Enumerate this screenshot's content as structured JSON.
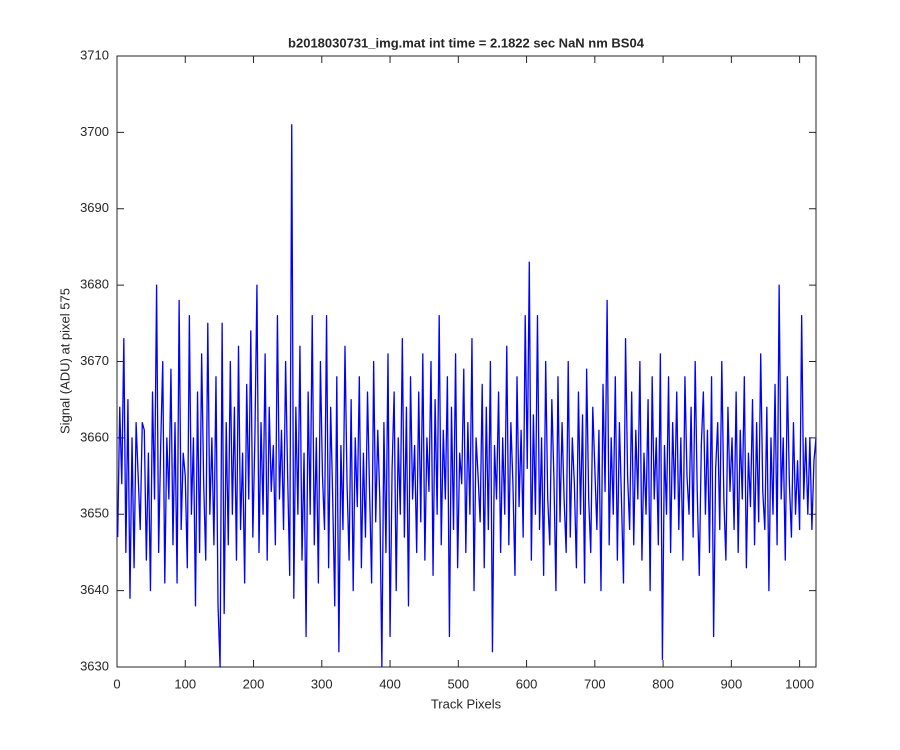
{
  "chart_data": {
    "type": "line",
    "title": "b2018030731_img.mat int time = 2.1822 sec  NaN nm BS04",
    "xlabel": "Track Pixels",
    "ylabel": "Signal (ADU) at pixel 575",
    "xlim": [
      0,
      1024
    ],
    "ylim": [
      3630,
      3710
    ],
    "xticks": [
      0,
      100,
      200,
      300,
      400,
      500,
      600,
      700,
      800,
      900,
      1000
    ],
    "yticks": [
      3630,
      3640,
      3650,
      3660,
      3670,
      3680,
      3690,
      3700,
      3710
    ],
    "grid": false,
    "x": [
      1,
      4,
      7,
      10,
      13,
      16,
      19,
      22,
      25,
      28,
      31,
      34,
      37,
      40,
      43,
      46,
      49,
      52,
      55,
      58,
      61,
      64,
      67,
      70,
      73,
      76,
      79,
      82,
      85,
      88,
      91,
      94,
      97,
      100,
      103,
      106,
      109,
      112,
      115,
      118,
      121,
      124,
      127,
      130,
      133,
      136,
      139,
      142,
      145,
      148,
      151,
      154,
      157,
      160,
      163,
      166,
      169,
      172,
      175,
      178,
      181,
      184,
      187,
      190,
      193,
      196,
      199,
      202,
      205,
      208,
      211,
      214,
      217,
      220,
      223,
      226,
      229,
      232,
      235,
      238,
      241,
      244,
      247,
      250,
      253,
      256,
      259,
      262,
      265,
      268,
      271,
      274,
      277,
      280,
      283,
      286,
      289,
      292,
      295,
      298,
      301,
      304,
      307,
      310,
      313,
      316,
      319,
      322,
      325,
      328,
      331,
      334,
      337,
      340,
      343,
      346,
      349,
      352,
      355,
      358,
      361,
      364,
      367,
      370,
      373,
      376,
      379,
      382,
      385,
      388,
      391,
      394,
      397,
      400,
      403,
      406,
      409,
      412,
      415,
      418,
      421,
      424,
      427,
      430,
      433,
      436,
      439,
      442,
      445,
      448,
      451,
      454,
      457,
      460,
      463,
      466,
      469,
      472,
      475,
      478,
      481,
      484,
      487,
      490,
      493,
      496,
      499,
      502,
      505,
      508,
      511,
      514,
      517,
      520,
      523,
      526,
      529,
      532,
      535,
      538,
      541,
      544,
      547,
      550,
      553,
      556,
      559,
      562,
      565,
      568,
      571,
      574,
      577,
      580,
      583,
      586,
      589,
      592,
      595,
      598,
      601,
      604,
      607,
      610,
      613,
      616,
      619,
      622,
      625,
      628,
      631,
      634,
      637,
      640,
      643,
      646,
      649,
      652,
      655,
      658,
      661,
      664,
      667,
      670,
      673,
      676,
      679,
      682,
      685,
      688,
      691,
      694,
      697,
      700,
      703,
      706,
      709,
      712,
      715,
      718,
      721,
      724,
      727,
      730,
      733,
      736,
      739,
      742,
      745,
      748,
      751,
      754,
      757,
      760,
      763,
      766,
      769,
      772,
      775,
      778,
      781,
      784,
      787,
      790,
      793,
      796,
      799,
      802,
      805,
      808,
      811,
      814,
      817,
      820,
      823,
      826,
      829,
      832,
      835,
      838,
      841,
      844,
      847,
      850,
      853,
      856,
      859,
      862,
      865,
      868,
      871,
      874,
      877,
      880,
      883,
      886,
      889,
      892,
      895,
      898,
      901,
      904,
      907,
      910,
      913,
      916,
      919,
      922,
      925,
      928,
      931,
      934,
      937,
      940,
      943,
      946,
      949,
      952,
      955,
      958,
      961,
      964,
      967,
      970,
      973,
      976,
      979,
      982,
      985,
      988,
      991,
      994,
      997,
      1000,
      1003,
      1006,
      1009,
      1012,
      1015,
      1018,
      1021,
      1024
    ],
    "series": [
      {
        "color": "#0000ff",
        "values": [
          3647,
          3664,
          3654,
          3673,
          3645,
          3665,
          3639,
          3660,
          3643,
          3662,
          3655,
          3648,
          3662,
          3661,
          3644,
          3658,
          3640,
          3666,
          3652,
          3680,
          3645,
          3659,
          3670,
          3641,
          3660,
          3652,
          3669,
          3646,
          3662,
          3641,
          3678,
          3648,
          3658,
          3655,
          3643,
          3676,
          3650,
          3660,
          3638,
          3666,
          3645,
          3671,
          3654,
          3644,
          3675,
          3650,
          3660,
          3646,
          3668,
          3638,
          3630,
          3675,
          3637,
          3662,
          3646,
          3670,
          3650,
          3664,
          3644,
          3672,
          3648,
          3658,
          3641,
          3667,
          3652,
          3674,
          3647,
          3660,
          3680,
          3645,
          3662,
          3650,
          3671,
          3644,
          3664,
          3653,
          3659,
          3646,
          3676,
          3652,
          3661,
          3648,
          3670,
          3655,
          3642,
          3701,
          3639,
          3664,
          3650,
          3672,
          3644,
          3658,
          3634,
          3666,
          3650,
          3676,
          3646,
          3660,
          3641,
          3670,
          3655,
          3648,
          3676,
          3643,
          3664,
          3652,
          3638,
          3668,
          3632,
          3659,
          3648,
          3672,
          3654,
          3644,
          3665,
          3640,
          3660,
          3651,
          3668,
          3643,
          3658,
          3647,
          3666,
          3653,
          3641,
          3670,
          3649,
          3661,
          3652,
          3630,
          3662,
          3645,
          3671,
          3634,
          3656,
          3666,
          3640,
          3660,
          3650,
          3673,
          3647,
          3664,
          3638,
          3668,
          3652,
          3659,
          3645,
          3666,
          3649,
          3671,
          3644,
          3660,
          3653,
          3670,
          3642,
          3665,
          3650,
          3676,
          3646,
          3661,
          3652,
          3668,
          3634,
          3664,
          3648,
          3671,
          3643,
          3658,
          3654,
          3669,
          3645,
          3662,
          3650,
          3673,
          3640,
          3660,
          3655,
          3649,
          3667,
          3643,
          3664,
          3648,
          3670,
          3632,
          3659,
          3652,
          3666,
          3645,
          3660,
          3650,
          3672,
          3646,
          3662,
          3654,
          3642,
          3668,
          3651,
          3661,
          3647,
          3676,
          3656,
          3683,
          3644,
          3663,
          3650,
          3676,
          3648,
          3660,
          3642,
          3670,
          3652,
          3646,
          3665,
          3655,
          3640,
          3668,
          3649,
          3662,
          3652,
          3645,
          3670,
          3647,
          3660,
          3654,
          3643,
          3666,
          3650,
          3663,
          3641,
          3669,
          3652,
          3645,
          3664,
          3656,
          3648,
          3661,
          3640,
          3667,
          3653,
          3678,
          3646,
          3660,
          3650,
          3668,
          3644,
          3662,
          3652,
          3641,
          3673,
          3655,
          3648,
          3666,
          3646,
          3661,
          3652,
          3670,
          3644,
          3658,
          3650,
          3665,
          3640,
          3668,
          3652,
          3660,
          3646,
          3671,
          3631,
          3659,
          3650,
          3668,
          3645,
          3662,
          3652,
          3666,
          3648,
          3660,
          3644,
          3668,
          3655,
          3650,
          3664,
          3647,
          3670,
          3653,
          3642,
          3659,
          3666,
          3650,
          3661,
          3645,
          3668,
          3634,
          3656,
          3662,
          3648,
          3670,
          3652,
          3644,
          3664,
          3653,
          3660,
          3648,
          3666,
          3645,
          3661,
          3652,
          3668,
          3643,
          3658,
          3651,
          3665,
          3646,
          3662,
          3649,
          3671,
          3653,
          3648,
          3664,
          3640,
          3660,
          3650,
          3667,
          3646,
          3680,
          3652,
          3660,
          3644,
          3668,
          3654,
          3647,
          3662,
          3650,
          3657,
          3648,
          3676,
          3652,
          3660,
          3650,
          3660,
          3648,
          3657,
          3660
        ]
      }
    ]
  }
}
